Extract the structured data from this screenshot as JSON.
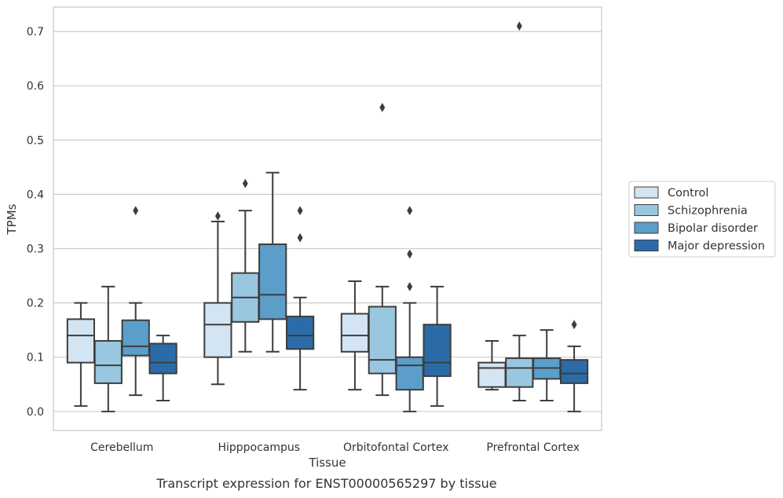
{
  "chart_data": {
    "type": "box",
    "title": "",
    "xlabel": "Tissue",
    "ylabel": "TPMs",
    "caption": "Transcript expression for ENST00000565297 by tissue",
    "ylim": [
      -0.035,
      0.745
    ],
    "yticks": [
      0.0,
      0.1,
      0.2,
      0.3,
      0.4,
      0.5,
      0.6,
      0.7
    ],
    "ytick_labels": [
      "0.0",
      "0.1",
      "0.2",
      "0.3",
      "0.4",
      "0.5",
      "0.6",
      "0.7"
    ],
    "grid": "horizontal",
    "legend_position": "right",
    "categories": [
      "Cerebellum",
      "Hipppocampus",
      "Orbitofontal Cortex",
      "Prefrontal Cortex"
    ],
    "series": [
      {
        "name": "Control",
        "color": "#d3e4f3",
        "boxes": [
          {
            "whislo": 0.01,
            "q1": 0.09,
            "med": 0.14,
            "q3": 0.17,
            "whishi": 0.2,
            "fliers": []
          },
          {
            "whislo": 0.05,
            "q1": 0.1,
            "med": 0.16,
            "q3": 0.2,
            "whishi": 0.35,
            "fliers": [
              0.36
            ]
          },
          {
            "whislo": 0.04,
            "q1": 0.11,
            "med": 0.14,
            "q3": 0.18,
            "whishi": 0.24,
            "fliers": []
          },
          {
            "whislo": 0.04,
            "q1": 0.045,
            "med": 0.08,
            "q3": 0.09,
            "whishi": 0.13,
            "fliers": []
          }
        ]
      },
      {
        "name": "Schizophrenia",
        "color": "#9ac7e0",
        "boxes": [
          {
            "whislo": 0.0,
            "q1": 0.052,
            "med": 0.085,
            "q3": 0.13,
            "whishi": 0.23,
            "fliers": []
          },
          {
            "whislo": 0.11,
            "q1": 0.165,
            "med": 0.21,
            "q3": 0.255,
            "whishi": 0.37,
            "fliers": [
              0.42
            ]
          },
          {
            "whislo": 0.03,
            "q1": 0.07,
            "med": 0.095,
            "q3": 0.193,
            "whishi": 0.23,
            "fliers": [
              0.56
            ]
          },
          {
            "whislo": 0.02,
            "q1": 0.045,
            "med": 0.08,
            "q3": 0.098,
            "whishi": 0.14,
            "fliers": [
              0.71
            ]
          }
        ]
      },
      {
        "name": "Bipolar disorder",
        "color": "#5b9ec9",
        "boxes": [
          {
            "whislo": 0.03,
            "q1": 0.103,
            "med": 0.12,
            "q3": 0.168,
            "whishi": 0.2,
            "fliers": [
              0.37
            ]
          },
          {
            "whislo": 0.11,
            "q1": 0.17,
            "med": 0.215,
            "q3": 0.308,
            "whishi": 0.44,
            "fliers": []
          },
          {
            "whislo": 0.0,
            "q1": 0.04,
            "med": 0.085,
            "q3": 0.1,
            "whishi": 0.2,
            "fliers": [
              0.23,
              0.29,
              0.37
            ]
          },
          {
            "whislo": 0.02,
            "q1": 0.06,
            "med": 0.08,
            "q3": 0.098,
            "whishi": 0.15,
            "fliers": []
          }
        ]
      },
      {
        "name": "Major depression",
        "color": "#2b6ca8",
        "boxes": [
          {
            "whislo": 0.02,
            "q1": 0.07,
            "med": 0.09,
            "q3": 0.125,
            "whishi": 0.14,
            "fliers": []
          },
          {
            "whislo": 0.04,
            "q1": 0.115,
            "med": 0.14,
            "q3": 0.175,
            "whishi": 0.21,
            "fliers": [
              0.32,
              0.37
            ]
          },
          {
            "whislo": 0.01,
            "q1": 0.065,
            "med": 0.09,
            "q3": 0.16,
            "whishi": 0.23,
            "fliers": []
          },
          {
            "whislo": 0.0,
            "q1": 0.052,
            "med": 0.07,
            "q3": 0.095,
            "whishi": 0.12,
            "fliers": [
              0.16
            ]
          }
        ]
      }
    ]
  }
}
